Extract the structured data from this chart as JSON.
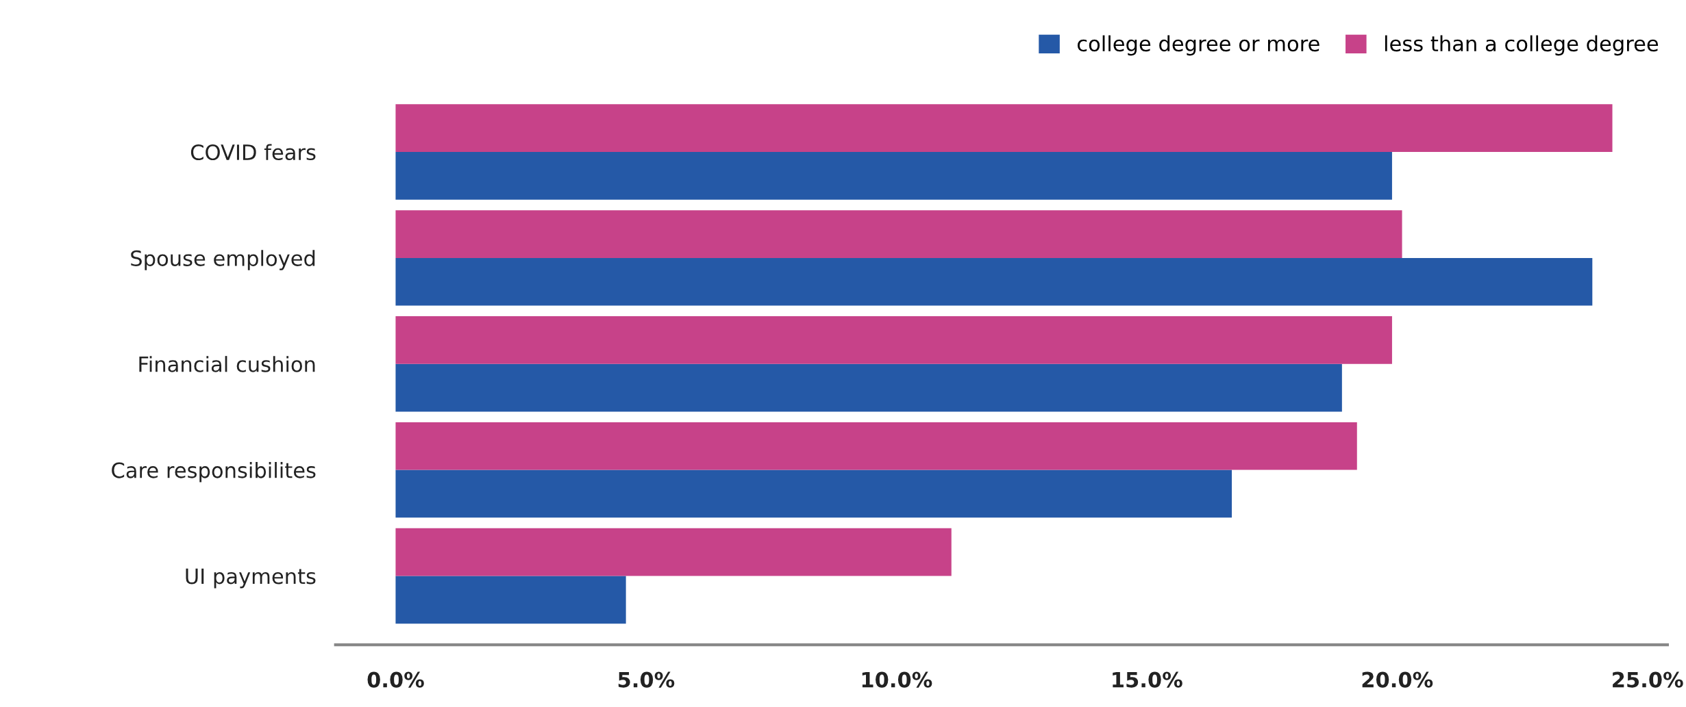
{
  "chart_data": {
    "type": "bar",
    "orientation": "horizontal",
    "categories": [
      "COVID fears",
      "Spouse employed",
      "Financial cushion",
      "Care responsibilites",
      "UI payments"
    ],
    "series": [
      {
        "name": "college degree or more",
        "color": "#2559a7",
        "values": [
          19.9,
          23.9,
          18.9,
          16.7,
          4.6
        ]
      },
      {
        "name": "less than a college degree",
        "color": "#c74289",
        "values": [
          24.3,
          20.1,
          19.9,
          19.2,
          11.1
        ]
      }
    ],
    "xlim": [
      -1.2,
      25.4
    ],
    "xticks": [
      {
        "value": 0,
        "label": "0.0%"
      },
      {
        "value": 5,
        "label": "5.0%"
      },
      {
        "value": 10,
        "label": "10.0%"
      },
      {
        "value": 15,
        "label": "15.0%"
      },
      {
        "value": 20,
        "label": "20.0%"
      },
      {
        "value": 25,
        "label": "25.0%"
      }
    ],
    "grid": false,
    "legend": "top right"
  }
}
